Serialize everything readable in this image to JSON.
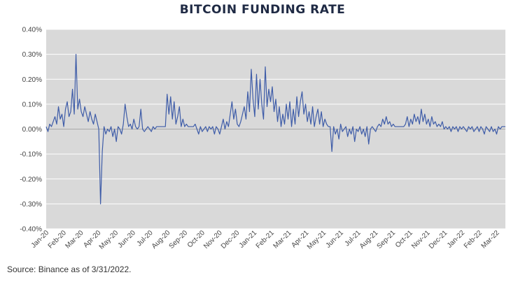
{
  "chart_data": {
    "type": "line",
    "title": "BITCOIN FUNDING RATE",
    "xlabel": "",
    "ylabel": "",
    "ylim": [
      -0.4,
      0.4
    ],
    "y_ticks": [
      "0.40%",
      "0.30%",
      "0.20%",
      "0.10%",
      "0.00%",
      "-0.10%",
      "-0.20%",
      "-0.30%",
      "-0.40%"
    ],
    "x_ticks": [
      "Jan-20",
      "Feb-20",
      "Mar-20",
      "Apr-20",
      "May-20",
      "Jun-20",
      "Jul-20",
      "Aug-20",
      "Sep-20",
      "Oct-20",
      "Nov-20",
      "Dec-20",
      "Jan-21",
      "Feb-21",
      "Mar-21",
      "Apr-21",
      "May-21",
      "Jun-21",
      "Jul-21",
      "Aug-21",
      "Sep-21",
      "Oct-21",
      "Nov-21",
      "Dec-21",
      "Jan-22",
      "Feb-22",
      "Mar-22"
    ],
    "grid": true,
    "legend": "none",
    "colors": {
      "line": "#3e5ca8",
      "plot_bg": "#d9d9d9",
      "grid": "#ffffff"
    },
    "series": [
      {
        "values_pct": [
          0.01,
          -0.01,
          0.02,
          0.01,
          0.03,
          0.05,
          0.02,
          0.09,
          0.04,
          0.06,
          0.01,
          0.08,
          0.11,
          0.05,
          0.07,
          0.16,
          0.06,
          0.3,
          0.08,
          0.12,
          0.07,
          0.05,
          0.09,
          0.06,
          0.03,
          0.07,
          0.04,
          0.02,
          0.06,
          0.03,
          0.0,
          -0.3,
          -0.09,
          0.01,
          -0.02,
          0.0,
          -0.01,
          0.01,
          -0.03,
          0.0,
          -0.05,
          0.01,
          0.0,
          -0.02,
          0.02,
          0.1,
          0.05,
          0.01,
          0.02,
          0.0,
          0.04,
          0.01,
          0.0,
          0.01,
          0.08,
          0.0,
          -0.01,
          0.0,
          0.01,
          0.0,
          -0.01,
          0.01,
          0.0,
          0.01,
          0.01,
          0.01,
          0.01,
          0.01,
          0.01,
          0.14,
          0.06,
          0.13,
          0.04,
          0.11,
          0.02,
          0.05,
          0.09,
          0.01,
          0.04,
          0.01,
          0.02,
          0.01,
          0.01,
          0.01,
          0.01,
          0.02,
          0.0,
          -0.02,
          0.01,
          -0.01,
          0.0,
          0.01,
          -0.01,
          0.01,
          0.0,
          0.01,
          -0.02,
          0.01,
          0.0,
          -0.02,
          0.01,
          0.04,
          0.0,
          0.03,
          0.01,
          0.06,
          0.11,
          0.04,
          0.08,
          0.02,
          0.01,
          0.03,
          0.06,
          0.09,
          0.04,
          0.15,
          0.07,
          0.24,
          0.12,
          0.05,
          0.22,
          0.08,
          0.2,
          0.1,
          0.04,
          0.25,
          0.09,
          0.16,
          0.11,
          0.17,
          0.07,
          0.12,
          0.03,
          0.09,
          0.01,
          0.06,
          0.02,
          0.1,
          0.04,
          0.11,
          0.01,
          0.08,
          0.02,
          0.13,
          0.05,
          0.11,
          0.15,
          0.06,
          0.1,
          0.03,
          0.07,
          0.02,
          0.09,
          0.01,
          0.05,
          0.08,
          0.02,
          0.07,
          0.01,
          0.04,
          0.02,
          0.01,
          0.01,
          -0.09,
          0.01,
          -0.02,
          0.0,
          -0.04,
          0.02,
          -0.01,
          0.0,
          0.01,
          -0.03,
          0.0,
          -0.02,
          0.01,
          -0.05,
          0.0,
          -0.01,
          0.01,
          -0.02,
          0.0,
          -0.03,
          0.01,
          -0.06,
          0.0,
          0.01,
          0.0,
          -0.01,
          0.01,
          0.02,
          0.01,
          0.04,
          0.02,
          0.05,
          0.02,
          0.03,
          0.01,
          0.02,
          0.01,
          0.01,
          0.01,
          0.01,
          0.01,
          0.01,
          0.02,
          0.05,
          0.01,
          0.04,
          0.02,
          0.06,
          0.03,
          0.05,
          0.02,
          0.08,
          0.03,
          0.06,
          0.02,
          0.04,
          0.01,
          0.05,
          0.02,
          0.03,
          0.01,
          0.02,
          0.01,
          0.03,
          0.0,
          0.01,
          0.0,
          0.01,
          -0.01,
          0.01,
          0.0,
          0.01,
          -0.01,
          0.01,
          0.0,
          0.01,
          0.0,
          -0.01,
          0.01,
          0.0,
          0.01,
          -0.01,
          0.0,
          0.01,
          -0.01,
          0.01,
          0.0,
          -0.02,
          0.01,
          0.0,
          -0.01,
          0.01,
          -0.01,
          0.0,
          -0.02,
          0.01,
          0.0,
          0.01,
          0.01,
          0.01
        ]
      }
    ]
  },
  "footer": {
    "source": "Source: Binance as of 3/31/2022."
  }
}
